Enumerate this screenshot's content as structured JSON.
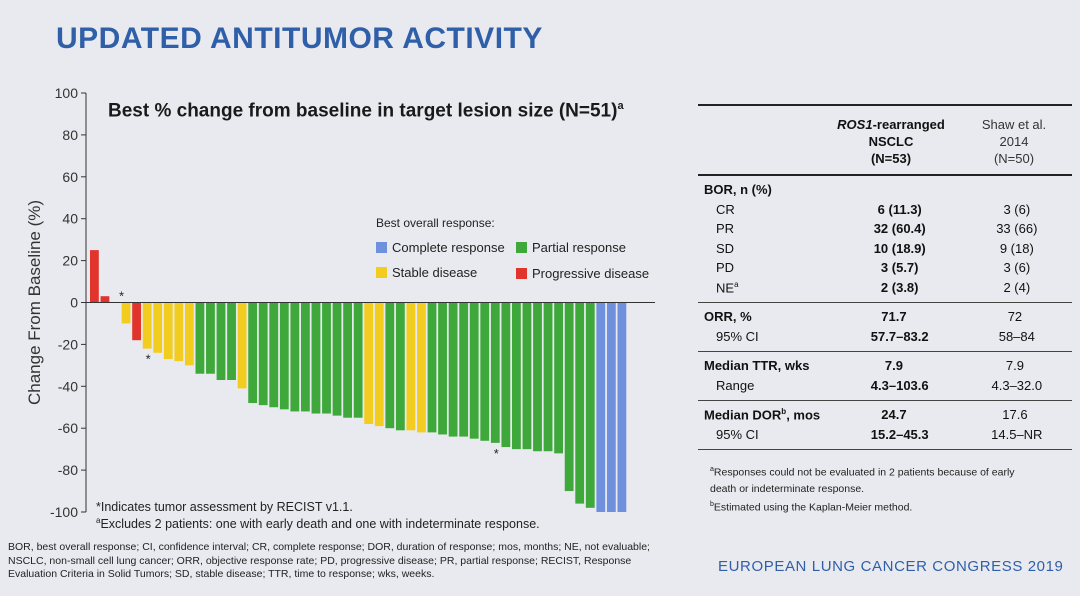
{
  "slide_title": "UPDATED ANTITUMOR ACTIVITY",
  "chart_data": {
    "type": "bar",
    "title": "Best % change from baseline in target lesion size (N=51)",
    "title_sup": "a",
    "ylabel": "Change From Baseline (%)",
    "xlabel": "",
    "ylim": [
      -100,
      100
    ],
    "yticks": [
      100,
      80,
      60,
      40,
      20,
      0,
      -20,
      -40,
      -60,
      -80,
      -100
    ],
    "grid": false,
    "legend_title": "Best overall response:",
    "legend_position": "center-right",
    "legend": [
      {
        "key": "CR",
        "label": "Complete response",
        "color": "#6f90dc"
      },
      {
        "key": "PR",
        "label": "Partial response",
        "color": "#3ea83a"
      },
      {
        "key": "SD",
        "label": "Stable disease",
        "color": "#f2cc1f"
      },
      {
        "key": "PD",
        "label": "Progressive disease",
        "color": "#e0342c"
      }
    ],
    "values": [
      25,
      3,
      0,
      -10,
      -18,
      -22,
      -24,
      -27,
      -28,
      -30,
      -34,
      -34,
      -37,
      -37,
      -41,
      -48,
      -49,
      -50,
      -51,
      -52,
      -52,
      -53,
      -53,
      -54,
      -55,
      -55,
      -58,
      -59,
      -60,
      -61,
      -61,
      -62,
      -62,
      -63,
      -64,
      -64,
      -65,
      -66,
      -67,
      -69,
      -70,
      -70,
      -71,
      -71,
      -72,
      -90,
      -96,
      -98,
      -100,
      -100,
      -100
    ],
    "categories": [
      "PD",
      "PD",
      "SD",
      "SD",
      "PD",
      "SD",
      "SD",
      "SD",
      "SD",
      "SD",
      "PR",
      "PR",
      "PR",
      "PR",
      "SD",
      "PR",
      "PR",
      "PR",
      "PR",
      "PR",
      "PR",
      "PR",
      "PR",
      "PR",
      "PR",
      "PR",
      "SD",
      "SD",
      "PR",
      "PR",
      "SD",
      "SD",
      "PR",
      "PR",
      "PR",
      "PR",
      "PR",
      "PR",
      "PR",
      "PR",
      "PR",
      "PR",
      "PR",
      "PR",
      "PR",
      "PR",
      "PR",
      "PR",
      "CR",
      "CR",
      "CR"
    ],
    "annotations": [
      {
        "bar_index": 2,
        "text": "*",
        "where": "above"
      },
      {
        "bar_index": 5,
        "text": "*",
        "where": "below"
      },
      {
        "bar_index": 38,
        "text": "*",
        "where": "below"
      }
    ],
    "notes": [
      {
        "text": "*Indicates tumor assessment by RECIST v1.1.",
        "sup": ""
      },
      {
        "text": "Excludes 2 patients: one with early death and one with indeterminate response.",
        "sup": "a"
      }
    ]
  },
  "abbreviations": "BOR, best overall response; CI, confidence interval; CR, complete response; DOR, duration of response; mos, months; NE, not evaluable; NSCLC, non-small cell lung cancer; ORR, objective response rate; PD, progressive disease; PR, partial response; RECIST, Response Evaluation Criteria in Solid Tumors; SD, stable disease; TTR, time to response; wks, weeks.",
  "table": {
    "col2_head": {
      "italic": "ROS1",
      "rest": "-rearranged",
      "line2": "NSCLC",
      "line3": "(N=53)"
    },
    "col3_head": {
      "line1": "Shaw et al.",
      "line2": "2014",
      "line3": "(N=50)"
    },
    "groups": [
      {
        "rows": [
          {
            "label": "BOR, n (%)",
            "v1": "",
            "v2": "",
            "head": true
          },
          {
            "label": "CR",
            "v1": "6 (11.3)",
            "v2": "3 (6)"
          },
          {
            "label": "PR",
            "v1": "32 (60.4)",
            "v2": "33 (66)"
          },
          {
            "label": "SD",
            "v1": "10 (18.9)",
            "v2": "9 (18)"
          },
          {
            "label": "PD",
            "v1": "3 (5.7)",
            "v2": "3 (6)"
          },
          {
            "label": "NE",
            "sup": "a",
            "v1": "2 (3.8)",
            "v2": "2 (4)"
          }
        ]
      },
      {
        "rows": [
          {
            "label": "ORR, %",
            "v1": "71.7",
            "v2": "72",
            "head": true
          },
          {
            "label": "95% CI",
            "v1": "57.7–83.2",
            "v2": "58–84"
          }
        ]
      },
      {
        "rows": [
          {
            "label": "Median TTR, wks",
            "v1": "7.9",
            "v2": "7.9",
            "head": true
          },
          {
            "label": "Range",
            "v1": "4.3–103.6",
            "v2": "4.3–32.0"
          }
        ]
      },
      {
        "rows": [
          {
            "label": "Median DOR",
            "sup": "b",
            "label_suffix": ", mos",
            "v1": "24.7",
            "v2": "17.6",
            "head": true
          },
          {
            "label": "95% CI",
            "v1": "15.2–45.3",
            "v2": "14.5–NR"
          }
        ]
      }
    ]
  },
  "footnotes": [
    {
      "sup": "a",
      "text": "Responses could not be evaluated in 2 patients because of early death or indeterminate response."
    },
    {
      "sup": "b",
      "text": "Estimated using the Kaplan-Meier method."
    }
  ],
  "congress": "EUROPEAN LUNG CANCER CONGRESS 2019"
}
